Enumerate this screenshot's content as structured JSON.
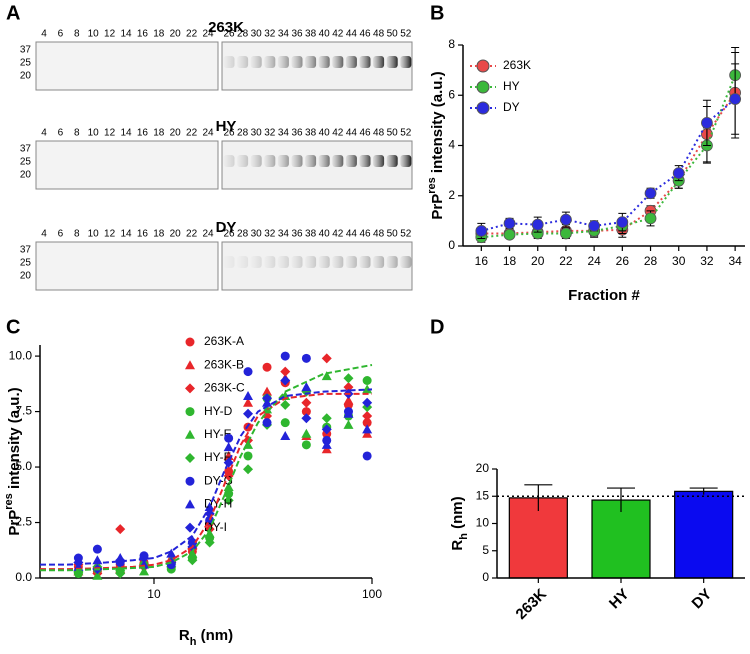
{
  "gel": {
    "panel_label": "A",
    "mw": [
      37,
      25,
      20
    ],
    "lanes_left": [
      4,
      6,
      8,
      10,
      12,
      14,
      16,
      18,
      20,
      22,
      24
    ],
    "lanes_right": [
      26,
      28,
      30,
      32,
      34,
      36,
      38,
      40,
      42,
      44,
      46,
      48,
      50,
      52
    ],
    "blots": [
      "263K",
      "HY",
      "DY"
    ]
  },
  "chart_data": [
    {
      "type": "line",
      "panel_label": "B",
      "ylabel": [
        "PrP",
        "res",
        " intensity (a.u.)"
      ],
      "ylabel_script": "sup",
      "xlabel": "Fraction #",
      "x": [
        16,
        18,
        20,
        22,
        24,
        26,
        28,
        30,
        32,
        34
      ],
      "xlim": [
        14.7,
        34.7
      ],
      "xticks": [
        16,
        18,
        20,
        22,
        24,
        26,
        28,
        30,
        32,
        34
      ],
      "ylim": [
        0,
        8
      ],
      "yticks": [
        0,
        2,
        4,
        6,
        8
      ],
      "series": [
        {
          "name": "263K",
          "color": "#e84a4a",
          "values": [
            0.5,
            0.5,
            0.55,
            0.6,
            0.6,
            0.65,
            1.4,
            2.6,
            4.45,
            6.1
          ],
          "errors": [
            0.2,
            0.15,
            0.2,
            0.25,
            0.2,
            0.3,
            0.2,
            0.3,
            1.1,
            1.8
          ]
        },
        {
          "name": "HY",
          "color": "#3cb83c",
          "values": [
            0.35,
            0.45,
            0.5,
            0.5,
            0.6,
            0.8,
            1.1,
            2.6,
            4.0,
            6.8
          ],
          "errors": [
            0.2,
            0.15,
            0.2,
            0.2,
            0.25,
            0.3,
            0.3,
            0.3,
            0.7,
            0.9
          ]
        },
        {
          "name": "DY",
          "color": "#2b2bdd",
          "values": [
            0.6,
            0.9,
            0.85,
            1.05,
            0.8,
            0.95,
            2.1,
            2.9,
            4.9,
            5.85
          ],
          "errors": [
            0.3,
            0.2,
            0.3,
            0.3,
            0.2,
            0.35,
            0.2,
            0.3,
            0.9,
            1.4
          ]
        }
      ]
    },
    {
      "type": "scatter",
      "panel_label": "C",
      "ylabel": [
        "PrP",
        "res",
        " intensity (a.u.)"
      ],
      "ylabel_script": "sup",
      "xlabel": [
        "R",
        "h",
        " (nm)"
      ],
      "xlabel_script": "sub",
      "xscale": "log",
      "xlim": [
        3,
        100
      ],
      "xticks": [
        10,
        100
      ],
      "ylim": [
        0,
        10.5
      ],
      "yticks": [
        {
          "value": 0,
          "label": "0.0"
        },
        {
          "value": 2.5,
          "label": "2.5"
        },
        {
          "value": 5,
          "label": "5.0"
        },
        {
          "value": 7.5,
          "label": "7.5"
        },
        {
          "value": 10,
          "label": "10.0"
        }
      ],
      "x": [
        4.5,
        5.5,
        7,
        9,
        12,
        15,
        18,
        22,
        27,
        33,
        40,
        50,
        62,
        78,
        95
      ],
      "series": [
        {
          "name": "263K-A",
          "color": "#e8262a",
          "marker": "circle",
          "values": [
            0.5,
            0.3,
            0.6,
            0.7,
            0.5,
            1.2,
            2.5,
            4.8,
            6.8,
            9.5,
            8.8,
            7.5,
            6.5,
            7.8,
            7.0
          ]
        },
        {
          "name": "263K-B",
          "color": "#e8262a",
          "marker": "triangle",
          "values": [
            0.3,
            0.6,
            0.4,
            0.8,
            0.9,
            1.5,
            3.0,
            5.5,
            7.9,
            8.4,
            9.0,
            6.4,
            5.8,
            8.0,
            6.5
          ]
        },
        {
          "name": "263K-C",
          "color": "#e8262a",
          "marker": "diamond",
          "values": [
            0.6,
            0.2,
            2.2,
            0.5,
            0.7,
            1.3,
            2.2,
            4.6,
            6.2,
            7.3,
            9.3,
            7.9,
            9.9,
            8.6,
            7.3
          ]
        },
        {
          "name": "HY-D",
          "color": "#2fb62f",
          "marker": "circle",
          "values": [
            0.2,
            0.4,
            0.3,
            0.6,
            0.4,
            0.9,
            1.8,
            3.8,
            5.5,
            8.1,
            7.0,
            6.0,
            6.8,
            7.3,
            8.9
          ]
        },
        {
          "name": "HY-E",
          "color": "#2fb62f",
          "marker": "triangle",
          "values": [
            0.4,
            0.1,
            0.5,
            0.3,
            0.8,
            1.1,
            2.0,
            4.1,
            6.0,
            7.6,
            8.2,
            6.5,
            9.1,
            6.9,
            8.5
          ]
        },
        {
          "name": "HY-F",
          "color": "#2fb62f",
          "marker": "diamond",
          "values": [
            0.3,
            0.5,
            0.2,
            0.6,
            0.5,
            0.8,
            1.6,
            3.5,
            4.9,
            6.9,
            7.8,
            8.4,
            7.2,
            9.0,
            7.7
          ]
        },
        {
          "name": "DY-G",
          "color": "#2323d8",
          "marker": "circle",
          "values": [
            0.9,
            1.3,
            0.7,
            1.0,
            0.6,
            1.6,
            2.6,
            6.3,
            9.3,
            7.0,
            10.0,
            9.9,
            6.2,
            7.5,
            5.5
          ]
        },
        {
          "name": "DY-H",
          "color": "#2323d8",
          "marker": "triangle",
          "values": [
            0.5,
            0.8,
            0.9,
            0.6,
            1.1,
            1.7,
            3.2,
            5.9,
            8.2,
            7.9,
            6.4,
            8.6,
            6.0,
            7.4,
            6.7
          ]
        },
        {
          "name": "DY-I",
          "color": "#2323d8",
          "marker": "diamond",
          "values": [
            0.7,
            0.4,
            0.8,
            0.9,
            0.7,
            1.4,
            2.9,
            5.2,
            7.4,
            8.1,
            8.9,
            7.2,
            6.7,
            8.3,
            7.9
          ]
        }
      ],
      "fits": [
        {
          "color": "#e8262a",
          "x": [
            3,
            4,
            6,
            8,
            10,
            12,
            15,
            18,
            21,
            25,
            30,
            40,
            60,
            100
          ],
          "values": [
            0.4,
            0.4,
            0.45,
            0.5,
            0.6,
            0.8,
            1.4,
            2.6,
            4.2,
            6.0,
            7.3,
            8.1,
            8.3,
            8.3
          ]
        },
        {
          "color": "#2fb62f",
          "x": [
            3,
            4,
            6,
            8,
            10,
            12,
            15,
            18,
            21,
            25,
            30,
            40,
            60,
            100
          ],
          "values": [
            0.35,
            0.35,
            0.4,
            0.45,
            0.5,
            0.7,
            1.2,
            2.2,
            3.7,
            5.5,
            7.0,
            8.4,
            9.2,
            9.6
          ]
        },
        {
          "color": "#2323d8",
          "x": [
            3,
            4,
            6,
            8,
            10,
            12,
            15,
            18,
            21,
            25,
            30,
            40,
            60,
            100
          ],
          "values": [
            0.6,
            0.6,
            0.7,
            0.8,
            0.9,
            1.2,
            1.9,
            3.2,
            4.8,
            6.4,
            7.5,
            8.2,
            8.4,
            8.5
          ]
        }
      ]
    },
    {
      "type": "bar",
      "panel_label": "D",
      "ylabel": [
        "R",
        "h",
        " (nm)"
      ],
      "ylabel_script": "sub",
      "categories": [
        "263K",
        "HY",
        "DY"
      ],
      "values": [
        14.7,
        14.3,
        15.9
      ],
      "errors": [
        2.4,
        2.2,
        0.6
      ],
      "colors": [
        "#f0393c",
        "#20c020",
        "#0a0af0"
      ],
      "ylim": [
        0,
        20
      ],
      "yticks": [
        0,
        5,
        10,
        15,
        20
      ],
      "hline": 15
    }
  ]
}
